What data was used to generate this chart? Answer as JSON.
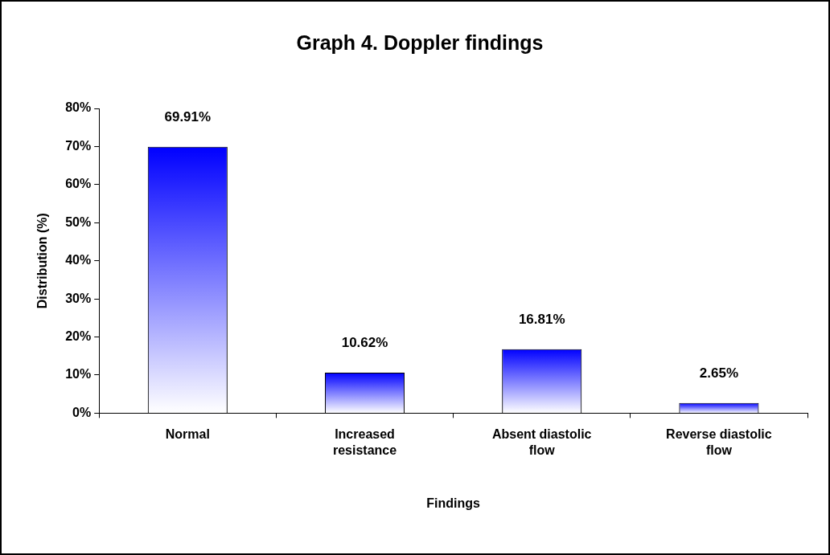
{
  "chart_data": {
    "type": "bar",
    "title": "Graph 4. Doppler findings",
    "xlabel": "Findings",
    "ylabel": "Distribution (%)",
    "categories": [
      "Normal",
      "Increased resistance",
      "Absent diastolic flow",
      "Reverse diastolic flow"
    ],
    "values": [
      69.91,
      10.62,
      16.81,
      2.65
    ],
    "value_labels": [
      "69.91%",
      "10.62%",
      "16.81%",
      "2.65%"
    ],
    "color": "#0000ff",
    "ylim": [
      0,
      80
    ],
    "yticks": [
      {
        "value": 0,
        "label": "0%"
      },
      {
        "value": 10,
        "label": "10%"
      },
      {
        "value": 20,
        "label": "20%"
      },
      {
        "value": 30,
        "label": "30%"
      },
      {
        "value": 40,
        "label": "40%"
      },
      {
        "value": 50,
        "label": "50%"
      },
      {
        "value": 60,
        "label": "60%"
      },
      {
        "value": 70,
        "label": "70%"
      },
      {
        "value": 80,
        "label": "80%"
      }
    ],
    "grid": false,
    "legend": false
  }
}
